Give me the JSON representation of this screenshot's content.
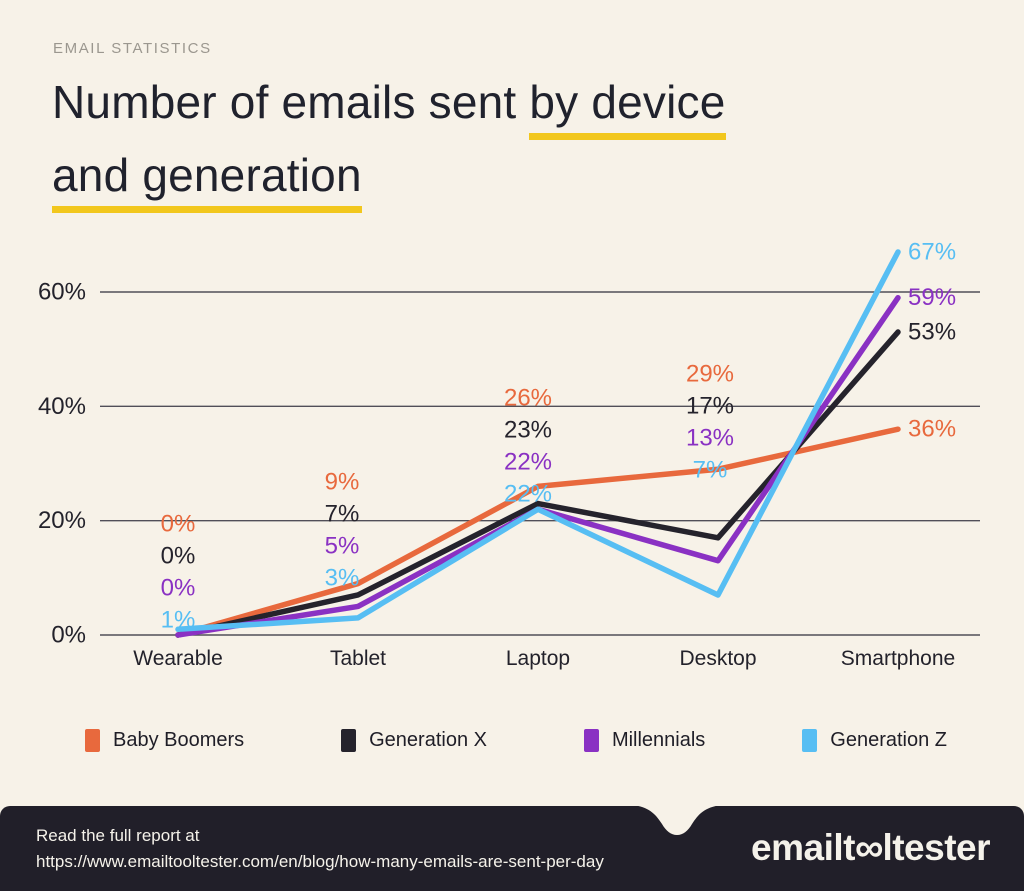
{
  "header": {
    "eyebrow": "EMAIL STATISTICS",
    "title_line1_plain": "Number of emails sent",
    "title_line1_underlined": "by device",
    "title_line2_underlined": "and generation"
  },
  "chart_data": {
    "type": "line",
    "title": "Number of emails sent by device and generation",
    "categories": [
      "Wearable",
      "Tablet",
      "Laptop",
      "Desktop",
      "Smartphone"
    ],
    "series": [
      {
        "name": "Baby Boomers",
        "color": "#E8693D",
        "values": [
          0,
          9,
          26,
          29,
          36
        ]
      },
      {
        "name": "Generation X",
        "color": "#25232C",
        "values": [
          0,
          7,
          23,
          17,
          53
        ]
      },
      {
        "name": "Millennials",
        "color": "#8A31C3",
        "values": [
          0,
          5,
          22,
          13,
          59
        ]
      },
      {
        "name": "Generation Z",
        "color": "#57BEF3",
        "values": [
          1,
          3,
          22,
          7,
          67
        ]
      }
    ],
    "y_ticks": [
      "0%",
      "20%",
      "40%",
      "60%"
    ],
    "y_tick_values": [
      0,
      20,
      40,
      60
    ],
    "ylim": [
      0,
      70
    ],
    "xlabel": "",
    "ylabel": "",
    "grid": true,
    "data_labels": true,
    "data_label_suffix": "%",
    "legend_position": "bottom"
  },
  "footer": {
    "line1": "Read the full report at",
    "line2": "https://www.emailtooltester.com/en/blog/how-many-emails-are-sent-per-day",
    "logo_pre": "emailt",
    "logo_infinity": "∞",
    "logo_post": "ltester"
  },
  "colors": {
    "background": "#F7F2E8",
    "accent_yellow_underline": "#F2C71D",
    "title_text": "#20222D",
    "eyebrow_text": "#9B978F",
    "gridline": "#514F58",
    "axis_text": "#23222B",
    "footer_background": "#211F29",
    "footer_text": "#F5F2EA"
  }
}
